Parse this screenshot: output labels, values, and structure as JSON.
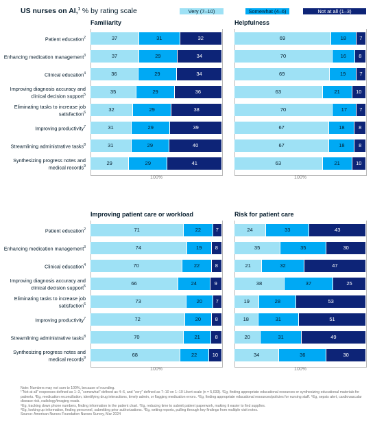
{
  "header": {
    "title_bold": "US nurses on AI,",
    "title_sup": "1",
    "title_rest": " % by rating scale"
  },
  "legend": [
    {
      "label": "Very (7–10)",
      "color": "#9ee1f5"
    },
    {
      "label": "Somewhat (4–6)",
      "color": "#00a9f4"
    },
    {
      "label": "Not at all (1–3)",
      "color": "#0d2477"
    }
  ],
  "colors": {
    "very": "#9ee1f5",
    "somewhat": "#00a9f4",
    "not_at_all": "#0d2477"
  },
  "row_labels": [
    {
      "text": "Patient education",
      "sup": "2"
    },
    {
      "text": "Enhancing medication management",
      "sup": "3"
    },
    {
      "text": "Clinical education",
      "sup": "4"
    },
    {
      "text": "Improving diagnosis accuracy and clinical decision support",
      "sup": "5"
    },
    {
      "text": "Eliminating tasks to increase job satisfaction",
      "sup": "6"
    },
    {
      "text": "Improving productivity",
      "sup": "7"
    },
    {
      "text": "Streamlining administrative tasks",
      "sup": "8"
    },
    {
      "text": "Synthesizing progress notes and medical records",
      "sup": "9"
    }
  ],
  "axis_label": "100%",
  "chart_data": [
    {
      "type": "bar",
      "stacked": true,
      "orientation": "horizontal",
      "title": "Familiarity",
      "categories": [
        "Patient education",
        "Enhancing medication management",
        "Clinical education",
        "Improving diagnosis accuracy and clinical decision support",
        "Eliminating tasks to increase job satisfaction",
        "Improving productivity",
        "Streamlining administrative tasks",
        "Synthesizing progress notes and medical records"
      ],
      "series": [
        {
          "name": "Very (7–10)",
          "values": [
            37,
            37,
            36,
            35,
            32,
            31,
            31,
            29
          ]
        },
        {
          "name": "Somewhat (4–6)",
          "values": [
            31,
            29,
            29,
            29,
            29,
            29,
            29,
            29
          ]
        },
        {
          "name": "Not at all (1–3)",
          "values": [
            32,
            34,
            34,
            36,
            38,
            39,
            40,
            41
          ]
        }
      ],
      "xlim": [
        0,
        100
      ]
    },
    {
      "type": "bar",
      "stacked": true,
      "orientation": "horizontal",
      "title": "Helpfulness",
      "categories": [
        "Patient education",
        "Enhancing medication management",
        "Clinical education",
        "Improving diagnosis accuracy and clinical decision support",
        "Eliminating tasks to increase job satisfaction",
        "Improving productivity",
        "Streamlining administrative tasks",
        "Synthesizing progress notes and medical records"
      ],
      "series": [
        {
          "name": "Very (7–10)",
          "values": [
            69,
            70,
            69,
            63,
            70,
            67,
            67,
            63
          ]
        },
        {
          "name": "Somewhat (4–6)",
          "values": [
            18,
            16,
            19,
            21,
            17,
            18,
            18,
            21
          ]
        },
        {
          "name": "Not at all (1–3)",
          "values": [
            7,
            8,
            7,
            10,
            7,
            8,
            8,
            10
          ]
        }
      ],
      "xlim": [
        0,
        100
      ]
    },
    {
      "type": "bar",
      "stacked": true,
      "orientation": "horizontal",
      "title": "Improving patient care or workload",
      "categories": [
        "Patient education",
        "Enhancing medication management",
        "Clinical education",
        "Improving diagnosis accuracy and clinical decision support",
        "Eliminating tasks to increase job satisfaction",
        "Improving productivity",
        "Streamlining administrative tasks",
        "Synthesizing progress notes and medical records"
      ],
      "series": [
        {
          "name": "Very (7–10)",
          "values": [
            71,
            74,
            70,
            66,
            73,
            72,
            70,
            68
          ]
        },
        {
          "name": "Somewhat (4–6)",
          "values": [
            22,
            19,
            22,
            24,
            20,
            20,
            21,
            22
          ]
        },
        {
          "name": "Not at all (1–3)",
          "values": [
            7,
            8,
            8,
            9,
            7,
            8,
            8,
            10
          ]
        }
      ],
      "xlim": [
        0,
        100
      ]
    },
    {
      "type": "bar",
      "stacked": true,
      "orientation": "horizontal",
      "title": "Risk for patient care",
      "categories": [
        "Patient education",
        "Enhancing medication management",
        "Clinical education",
        "Improving diagnosis accuracy and clinical decision support",
        "Eliminating tasks to increase job satisfaction",
        "Improving productivity",
        "Streamlining administrative tasks",
        "Synthesizing progress notes and medical records"
      ],
      "series": [
        {
          "name": "Very (7–10)",
          "values": [
            24,
            35,
            21,
            38,
            19,
            18,
            20,
            34
          ]
        },
        {
          "name": "Somewhat (4–6)",
          "values": [
            33,
            35,
            32,
            37,
            28,
            31,
            31,
            36
          ]
        },
        {
          "name": "Not at all (1–3)",
          "values": [
            43,
            30,
            47,
            25,
            53,
            51,
            49,
            30
          ]
        }
      ],
      "xlim": [
        0,
        100
      ]
    }
  ],
  "notes": [
    "Note: Numbers may not sum to 100%, because of rounding.",
    "¹“Not at all” responses defined as 1–3, “somewhat” defined as 4–6, and “very” defined as 7–10 on 1–10 Likert scale (n = 5,033). ²Eg, finding appropriate educational resources or synthesizing educational materials for patients. ³Eg, medication reconciliation, identifying drug interactions, timely admin, or flagging medication errors. ⁴Eg, finding appropriate educational resources/policies for nursing staff. ⁵Eg, sepsis alert, cardiovascular disease risk, radiology/imaging reads.",
    "⁶Eg, tracking down phone numbers, finding information in the patient chart. ⁷Eg, reducing time to submit patient paperwork, making it easier to find supplies.",
    "⁸Eg, looking up information, finding personnel, submitting prior authorizations. ⁹Eg, writing reports, pulling through key findings from multiple visit notes.",
    "Source: American Nurses Foundation Nurses Survey, Mar 2024"
  ]
}
